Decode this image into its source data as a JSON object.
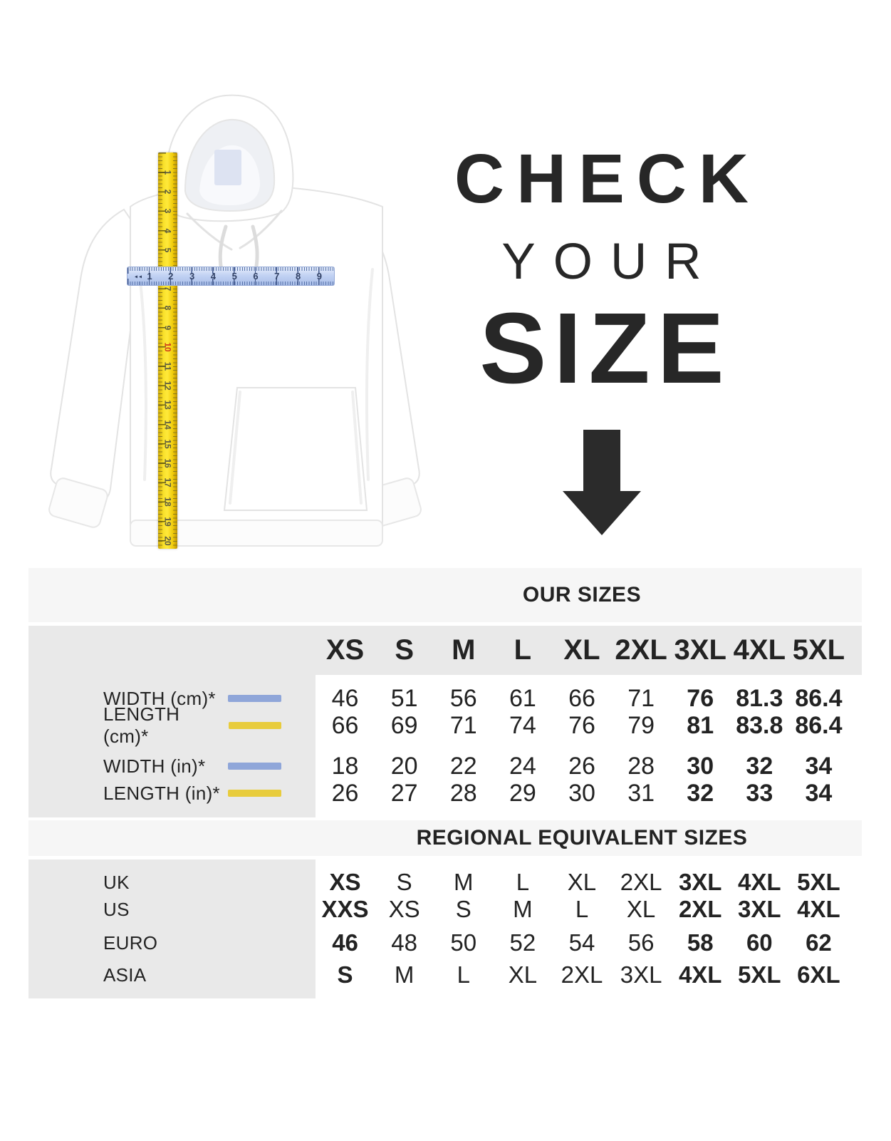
{
  "hero": {
    "line1": "CHECK",
    "line2": "YOUR",
    "line3": "SIZE",
    "arrow_icon": "down-arrow",
    "text_color": "#272727"
  },
  "figure": {
    "garment": "white-hoodie",
    "vertical_ruler": {
      "color": "#f7d70e",
      "numbers": [
        "1",
        "2",
        "3",
        "4",
        "5",
        "6",
        "7",
        "8",
        "9",
        "10",
        "11",
        "12",
        "13",
        "14",
        "15",
        "16",
        "17",
        "18",
        "19",
        "20"
      ],
      "red_number": "10"
    },
    "horizontal_ruler": {
      "color": "#b9cdf1",
      "numbers": [
        "1",
        "2",
        "3",
        "4",
        "5",
        "6",
        "7",
        "8",
        "9"
      ]
    }
  },
  "colors": {
    "band_bg": "#f6f6f6",
    "grid_bg": "#e9e9e9",
    "text": "#232323",
    "swatch_blue": "#8fa6d9",
    "swatch_yellow": "#e8cc3c",
    "arrow": "#2b2b2b"
  },
  "chart_data": {
    "type": "table",
    "columns": [
      "XS",
      "S",
      "M",
      "L",
      "XL",
      "2XL",
      "3XL",
      "4XL",
      "5XL"
    ],
    "bold_columns_from": "3XL",
    "sections": [
      {
        "header": "OUR SIZES",
        "rows": [
          {
            "label": "WIDTH (cm)*",
            "swatch": "blue",
            "values": [
              "46",
              "51",
              "56",
              "61",
              "66",
              "71",
              "76",
              "81.3",
              "86.4"
            ]
          },
          {
            "label": "LENGTH (cm)*",
            "swatch": "yellow",
            "values": [
              "66",
              "69",
              "71",
              "74",
              "76",
              "79",
              "81",
              "83.8",
              "86.4"
            ]
          },
          {
            "label": "WIDTH (in)*",
            "swatch": "blue",
            "values": [
              "18",
              "20",
              "22",
              "24",
              "26",
              "28",
              "30",
              "32",
              "34"
            ]
          },
          {
            "label": "LENGTH (in)*",
            "swatch": "yellow",
            "values": [
              "26",
              "27",
              "28",
              "29",
              "30",
              "31",
              "32",
              "33",
              "34"
            ]
          }
        ]
      },
      {
        "header": "REGIONAL EQUIVALENT SIZES",
        "first_value_bold": true,
        "rows": [
          {
            "label": "UK",
            "values": [
              "XS",
              "S",
              "M",
              "L",
              "XL",
              "2XL",
              "3XL",
              "4XL",
              "5XL"
            ]
          },
          {
            "label": "US",
            "values": [
              "XXS",
              "XS",
              "S",
              "M",
              "L",
              "XL",
              "2XL",
              "3XL",
              "4XL"
            ]
          },
          {
            "label": "EURO",
            "values": [
              "46",
              "48",
              "50",
              "52",
              "54",
              "56",
              "58",
              "60",
              "62"
            ]
          },
          {
            "label": "ASIA",
            "values": [
              "S",
              "M",
              "L",
              "XL",
              "2XL",
              "3XL",
              "4XL",
              "5XL",
              "6XL"
            ]
          }
        ]
      }
    ]
  }
}
